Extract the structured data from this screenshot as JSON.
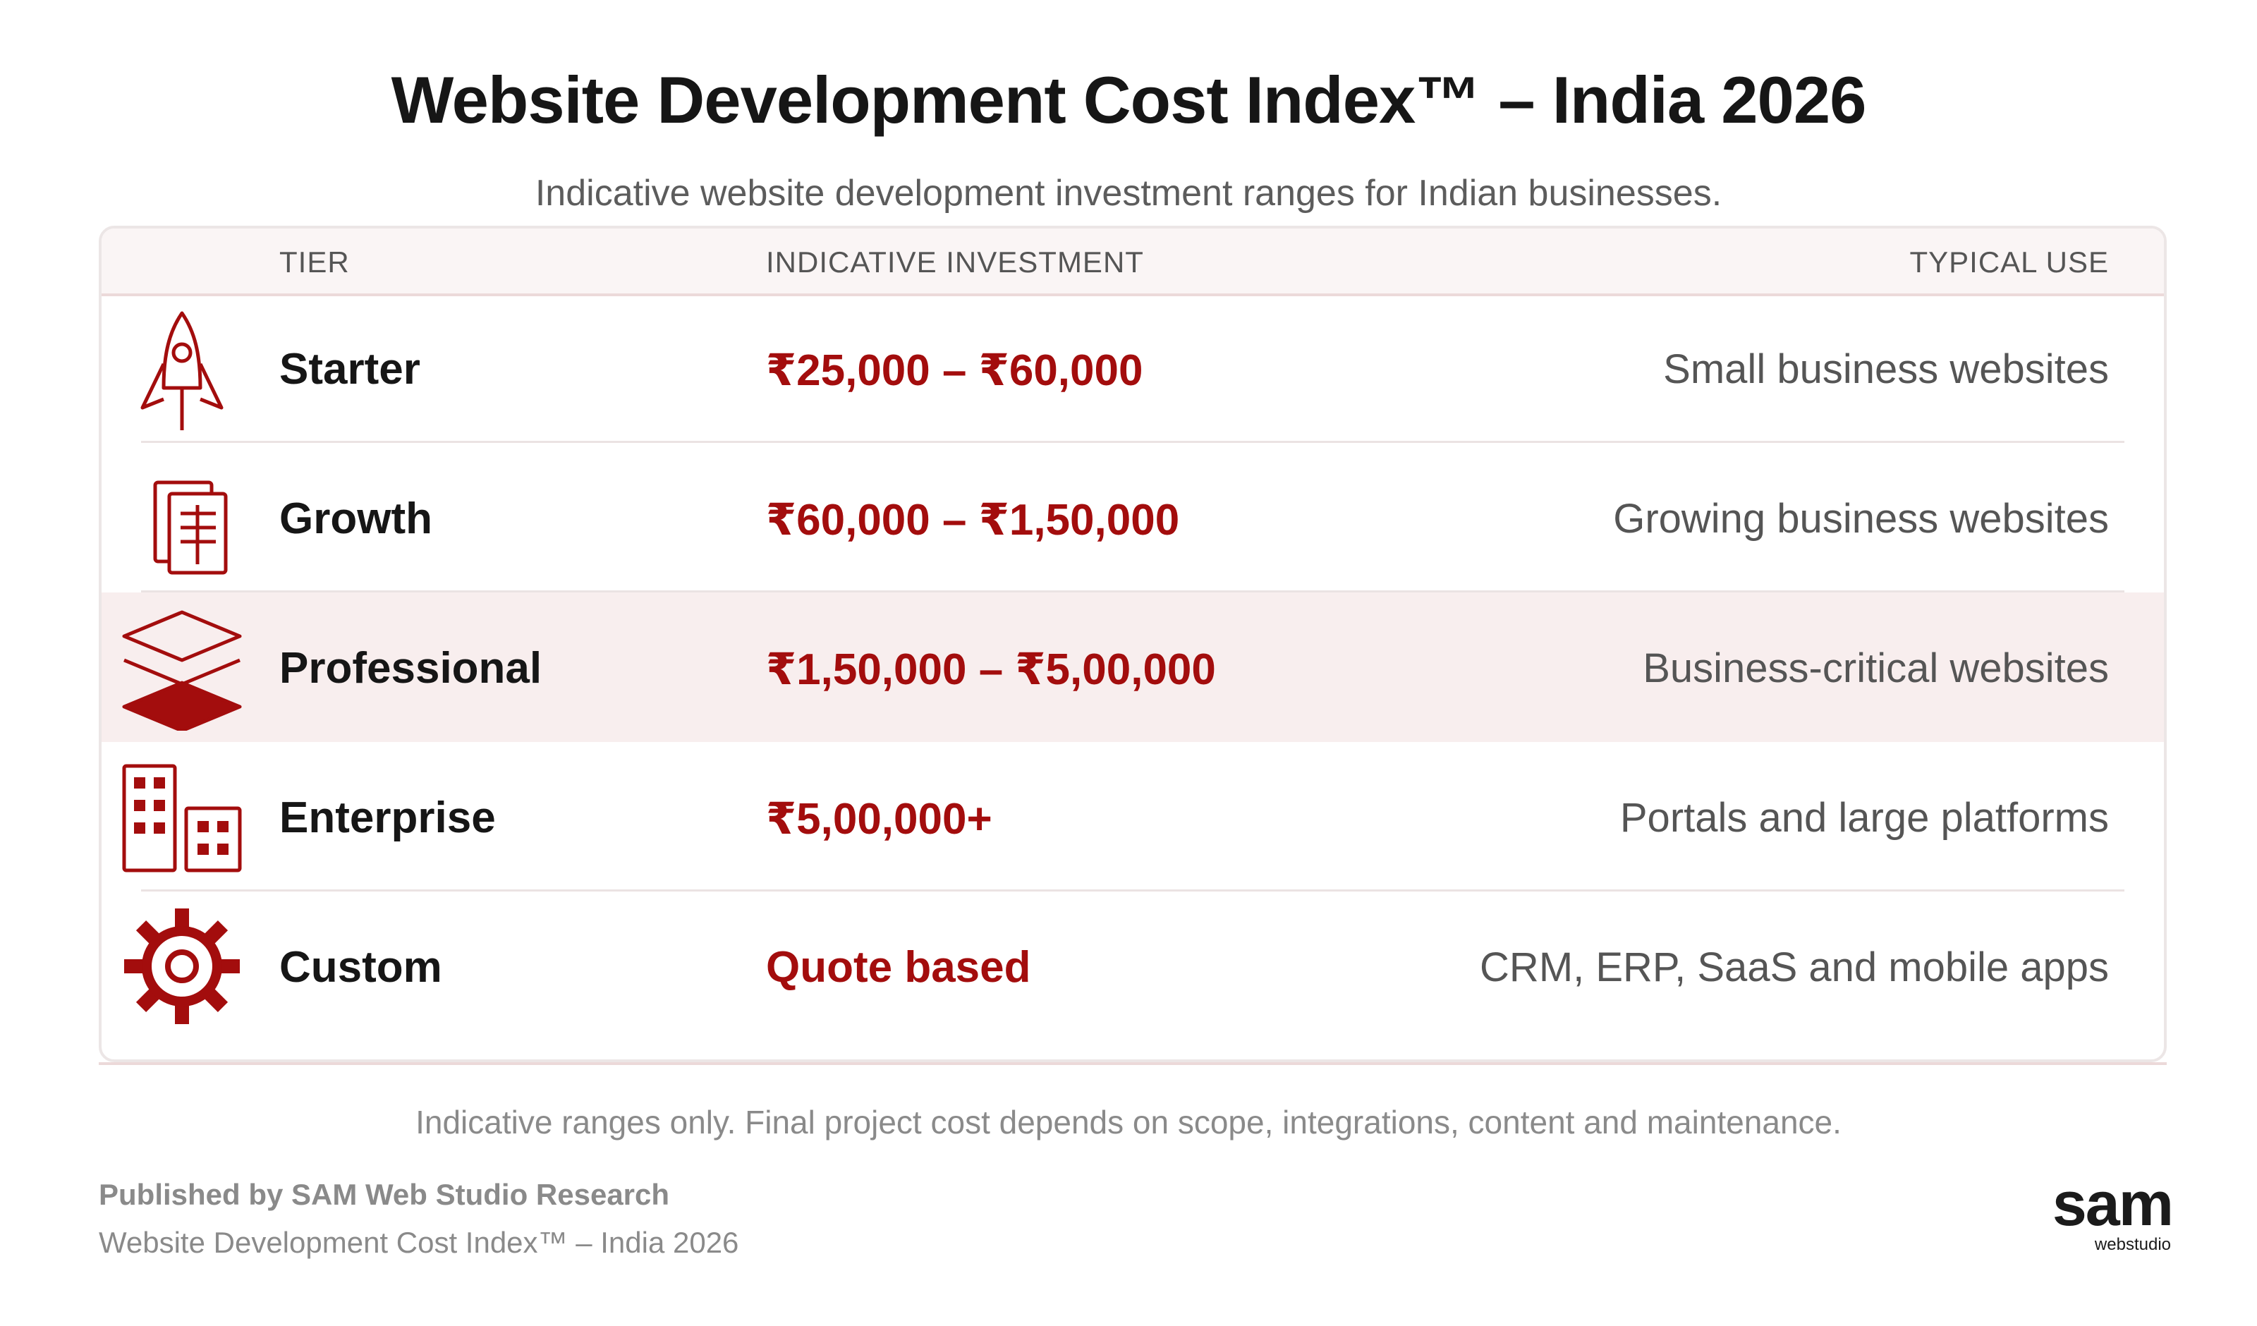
{
  "header": {
    "title": "Website Development Cost Index™ – India 2026",
    "subtitle": "Indicative website development investment ranges for Indian businesses."
  },
  "table": {
    "columns": [
      "TIER",
      "INDICATIVE INVESTMENT",
      "TYPICAL USE"
    ],
    "rows": [
      {
        "tier": "Starter",
        "investment": "₹25,000 – ₹60,000",
        "use": "Small business websites",
        "icon": "rocket-icon",
        "highlighted": false
      },
      {
        "tier": "Growth",
        "investment": "₹60,000 – ₹1,50,000",
        "use": "Growing business websites",
        "icon": "documents-icon",
        "highlighted": false
      },
      {
        "tier": "Professional",
        "investment": "₹1,50,000 – ₹5,00,000",
        "use": "Business-critical websites",
        "icon": "layers-icon",
        "highlighted": true
      },
      {
        "tier": "Enterprise",
        "investment": "₹5,00,000+",
        "use": "Portals and large platforms",
        "icon": "buildings-icon",
        "highlighted": false
      },
      {
        "tier": "Custom",
        "investment": "Quote based",
        "use": "CRM, ERP, SaaS and mobile apps",
        "icon": "gear-icon",
        "highlighted": false
      }
    ]
  },
  "footer": {
    "disclaimer": "Indicative ranges only. Final project cost depends on scope, integrations, content and maintenance.",
    "publisher": "Published by SAM Web Studio Research",
    "report_name": "Website Development Cost Index™ – India 2026"
  },
  "logo": {
    "main": "sam",
    "sub": "webstudio"
  },
  "colors": {
    "accent": "#a30d0d",
    "highlight_row": "#f8eeee",
    "text_dark": "#161616",
    "text_muted": "#555555"
  }
}
